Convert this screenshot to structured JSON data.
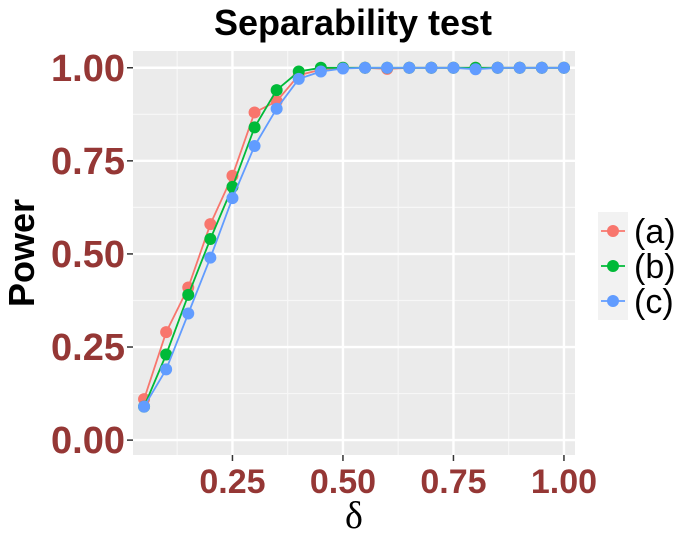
{
  "chart_data": {
    "type": "line",
    "title": "Separability test",
    "xlabel": "δ",
    "ylabel": "Power",
    "xlim": [
      0.025,
      1.025
    ],
    "ylim": [
      -0.04,
      1.045
    ],
    "xticks": [
      0.25,
      0.5,
      0.75,
      1.0
    ],
    "xtick_labels": [
      "0.25",
      "0.50",
      "0.75",
      "1.00"
    ],
    "yticks": [
      0.0,
      0.25,
      0.5,
      0.75,
      1.0
    ],
    "ytick_labels": [
      "0.00",
      "0.25",
      "0.50",
      "0.75",
      "1.00"
    ],
    "grid": true,
    "legend_position": "right",
    "x": [
      0.05,
      0.1,
      0.15,
      0.2,
      0.25,
      0.3,
      0.35,
      0.4,
      0.45,
      0.5,
      0.55,
      0.6,
      0.65,
      0.7,
      0.75,
      0.8,
      0.85,
      0.9,
      0.95,
      1.0
    ],
    "series": [
      {
        "name": "(a)",
        "color": "#F8766D",
        "values": [
          0.11,
          0.29,
          0.41,
          0.58,
          0.71,
          0.88,
          0.91,
          0.98,
          0.995,
          1.0,
          1.0,
          0.997,
          1.0,
          1.0,
          1.0,
          1.0,
          1.0,
          1.0,
          1.0,
          1.0
        ]
      },
      {
        "name": "(b)",
        "color": "#00BA38",
        "values": [
          0.09,
          0.23,
          0.39,
          0.54,
          0.68,
          0.84,
          0.94,
          0.99,
          1.0,
          1.0,
          1.0,
          1.0,
          1.0,
          1.0,
          1.0,
          1.0,
          1.0,
          1.0,
          1.0,
          1.0
        ]
      },
      {
        "name": "(c)",
        "color": "#619CFF",
        "values": [
          0.09,
          0.19,
          0.34,
          0.49,
          0.65,
          0.79,
          0.89,
          0.97,
          0.99,
          0.998,
          1.0,
          1.0,
          1.0,
          1.0,
          1.0,
          0.996,
          1.0,
          1.0,
          1.0,
          1.0
        ]
      }
    ]
  }
}
